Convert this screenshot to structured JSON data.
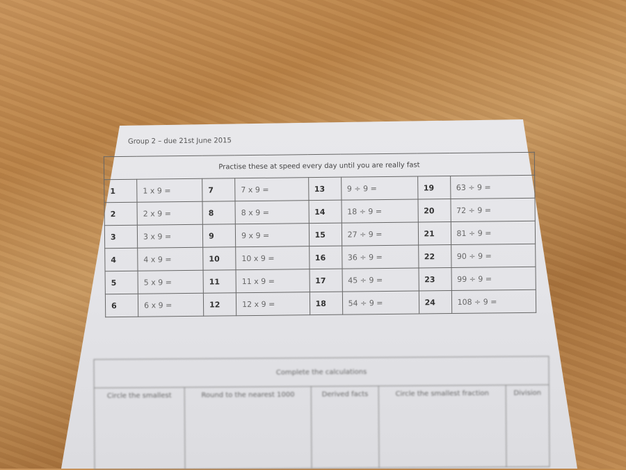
{
  "worksheet": {
    "header": "Group 2 – due 21st June 2015",
    "speed_table": {
      "title": "Practise these at speed every day until you are really fast",
      "rows": [
        [
          [
            "1",
            "1 x 9 ="
          ],
          [
            "7",
            "7 x 9 ="
          ],
          [
            "13",
            "9 ÷ 9 ="
          ],
          [
            "19",
            "63 ÷ 9 ="
          ]
        ],
        [
          [
            "2",
            "2 x 9 ="
          ],
          [
            "8",
            "8 x 9 ="
          ],
          [
            "14",
            "18 ÷ 9 ="
          ],
          [
            "20",
            "72 ÷ 9 ="
          ]
        ],
        [
          [
            "3",
            "3 x 9 ="
          ],
          [
            "9",
            "9 x 9 ="
          ],
          [
            "15",
            "27 ÷ 9 ="
          ],
          [
            "21",
            "81 ÷ 9 ="
          ]
        ],
        [
          [
            "4",
            "4 x 9 ="
          ],
          [
            "10",
            "10 x 9 ="
          ],
          [
            "16",
            "36 ÷ 9 ="
          ],
          [
            "22",
            "90 ÷ 9 ="
          ]
        ],
        [
          [
            "5",
            "5 x 9 ="
          ],
          [
            "11",
            "11 x 9 ="
          ],
          [
            "17",
            "45 ÷ 9 ="
          ],
          [
            "23",
            "99 ÷ 9 ="
          ]
        ],
        [
          [
            "6",
            "6 x 9 ="
          ],
          [
            "12",
            "12 x 9 ="
          ],
          [
            "18",
            "54 ÷ 9 ="
          ],
          [
            "24",
            "108 ÷ 9 ="
          ]
        ]
      ]
    },
    "calc_table": {
      "title": "Complete the calculations",
      "columns": [
        "Circle the smallest",
        "Round to the nearest 1000",
        "Derived facts",
        "Circle the smallest fraction",
        "Division"
      ]
    }
  },
  "colors": {
    "paper": "#e6e6ea",
    "wood": "#b98247",
    "ink": "#333333"
  }
}
